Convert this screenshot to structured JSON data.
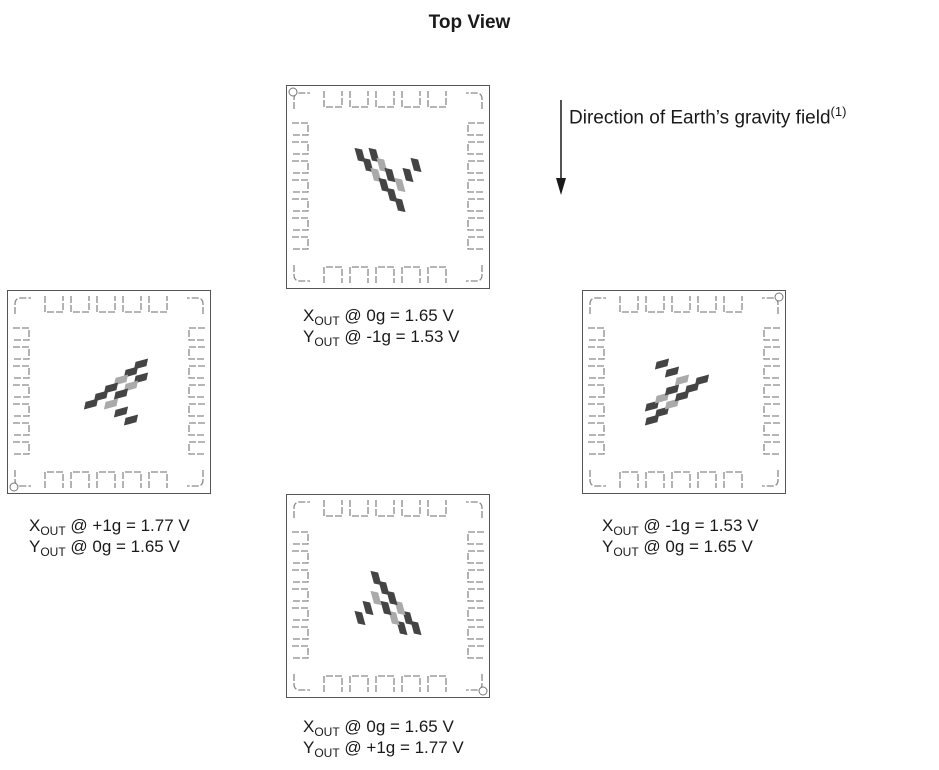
{
  "title": "Top View",
  "gravity": {
    "text": "Direction of Earth’s gravity field",
    "note": "(1)"
  },
  "packages": [
    {
      "id": "top",
      "x_line": {
        "sub": "OUT",
        "rest": " @ 0g = 1.65 V"
      },
      "y_line": {
        "sub": "OUT",
        "rest": " @ -1g = 1.53 V"
      }
    },
    {
      "id": "left",
      "x_line": {
        "sub": "OUT",
        "rest": " @ +1g = 1.77 V"
      },
      "y_line": {
        "sub": "OUT",
        "rest": " @ 0g = 1.65 V"
      }
    },
    {
      "id": "right",
      "x_line": {
        "sub": "OUT",
        "rest": " @ -1g = 1.53 V"
      },
      "y_line": {
        "sub": "OUT",
        "rest": " @ 0g = 1.65 V"
      }
    },
    {
      "id": "bottom",
      "x_line": {
        "sub": "OUT",
        "rest": " @ 0g = 1.65 V"
      },
      "y_line": {
        "sub": "OUT",
        "rest": " @ +1g = 1.77 V"
      }
    }
  ],
  "axis_letters": {
    "x": "X",
    "y": "Y"
  }
}
